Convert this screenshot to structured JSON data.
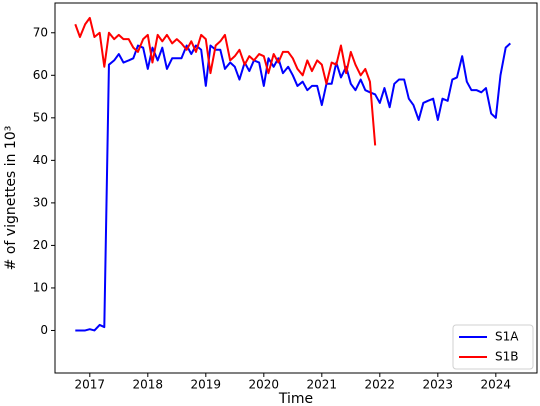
{
  "chart_data": {
    "type": "line",
    "xlabel": "Time",
    "ylabel": "# of vignettes in 10³",
    "x": [
      2016.75,
      2016.83,
      2016.92,
      2017,
      2017.08,
      2017.17,
      2017.25,
      2017.33,
      2017.42,
      2017.5,
      2017.58,
      2017.67,
      2017.75,
      2017.83,
      2017.92,
      2018,
      2018.08,
      2018.17,
      2018.25,
      2018.33,
      2018.42,
      2018.5,
      2018.58,
      2018.67,
      2018.75,
      2018.83,
      2018.92,
      2019,
      2019.08,
      2019.17,
      2019.25,
      2019.33,
      2019.42,
      2019.5,
      2019.58,
      2019.67,
      2019.75,
      2019.83,
      2019.92,
      2020,
      2020.08,
      2020.17,
      2020.25,
      2020.33,
      2020.42,
      2020.5,
      2020.58,
      2020.67,
      2020.75,
      2020.83,
      2020.92,
      2021,
      2021.08,
      2021.17,
      2021.25,
      2021.33,
      2021.42,
      2021.5,
      2021.58,
      2021.67,
      2021.75,
      2021.83,
      2021.92,
      2022,
      2022.08,
      2022.17,
      2022.25,
      2022.33,
      2022.42,
      2022.5,
      2022.58,
      2022.67,
      2022.75,
      2022.83,
      2022.92,
      2023,
      2023.08,
      2023.17,
      2023.25,
      2023.33,
      2023.42,
      2023.5,
      2023.58,
      2023.67,
      2023.75,
      2023.83,
      2023.92,
      2024,
      2024.08,
      2024.17,
      2024.25
    ],
    "series": [
      {
        "name": "S1A",
        "color": "#0000ff",
        "values": [
          0,
          0,
          0,
          0.3,
          0,
          1.3,
          0.8,
          62.5,
          63.5,
          65,
          63,
          63.5,
          64,
          67,
          66.5,
          61.5,
          66.5,
          63.5,
          66.5,
          61.5,
          64,
          64,
          64,
          67,
          65,
          67,
          66,
          57.5,
          67,
          66,
          66,
          61.5,
          63,
          62,
          59,
          63,
          61,
          63.5,
          63,
          57.5,
          64,
          62,
          64,
          60.5,
          62,
          60,
          57.5,
          58.5,
          56.5,
          57.5,
          57.5,
          53,
          58,
          58,
          63,
          59.5,
          62,
          58,
          56.5,
          59,
          56.5,
          56,
          55.5,
          53.5,
          57,
          52.5,
          58,
          59,
          59,
          54.5,
          53,
          49.5,
          53.5,
          54,
          54.5,
          49.5,
          54.5,
          54,
          59,
          59.5,
          64.5,
          58.5,
          56.5,
          56.5,
          56,
          57,
          51,
          50,
          60,
          66.5,
          67.5
        ]
      },
      {
        "name": "S1B",
        "color": "#ff0000",
        "values": [
          72,
          69,
          72,
          73.5,
          69,
          70,
          62,
          70,
          68.5,
          69.5,
          68.5,
          68.5,
          66.5,
          65.5,
          68.5,
          69.5,
          63,
          69.5,
          68,
          69.5,
          67.5,
          68.5,
          67.5,
          66,
          68,
          65.5,
          69.5,
          68.5,
          60.5,
          67,
          68,
          69.5,
          63.5,
          64.5,
          66,
          62.5,
          64.5,
          63.5,
          65,
          64.5,
          60.5,
          65,
          63,
          65.5,
          65.5,
          64,
          61.5,
          60,
          63.5,
          61,
          63.5,
          62.5,
          58,
          63,
          62.5,
          67,
          60.5,
          65.5,
          62.5,
          60,
          61.5,
          58.5,
          43.5,
          null,
          null,
          null,
          null,
          null,
          null,
          null,
          null,
          null,
          null,
          null,
          null,
          null,
          null,
          null,
          null,
          null,
          null,
          null,
          null,
          null,
          null,
          null,
          null,
          null,
          null,
          null,
          null
        ]
      }
    ],
    "xlim": [
      2016.4,
      2024.71
    ],
    "xticks": [
      2017,
      2018,
      2019,
      2020,
      2021,
      2022,
      2023,
      2024
    ],
    "ylim": [
      -10,
      77
    ],
    "yticks": [
      0,
      10,
      20,
      30,
      40,
      50,
      60,
      70
    ],
    "grid": false,
    "legend": "lower right"
  }
}
